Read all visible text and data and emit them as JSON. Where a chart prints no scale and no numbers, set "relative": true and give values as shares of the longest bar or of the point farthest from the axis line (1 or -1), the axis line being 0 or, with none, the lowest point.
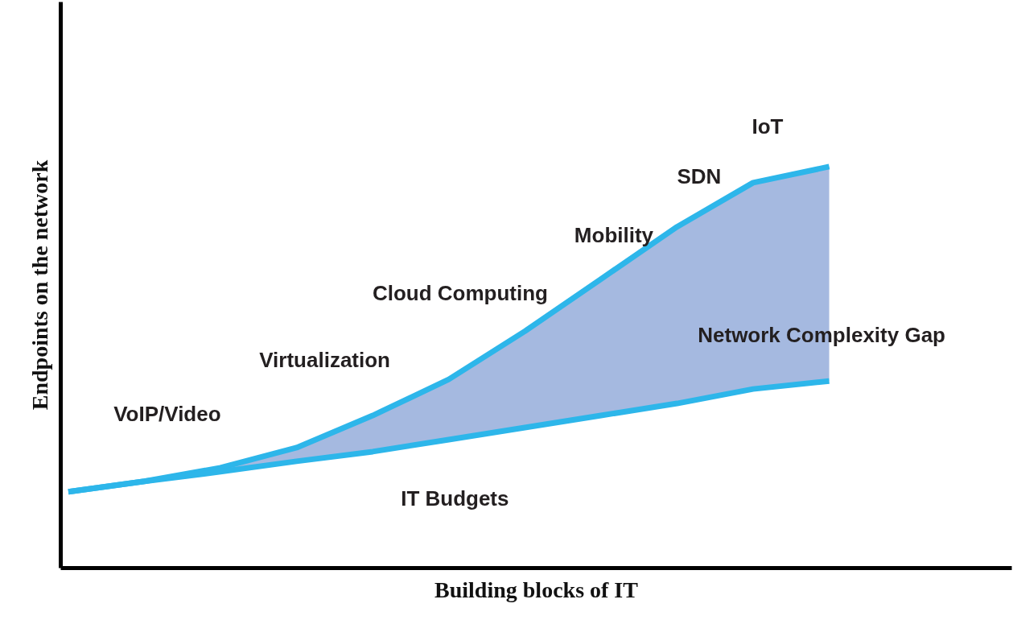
{
  "chart_data": {
    "type": "line",
    "relative": true,
    "xlabel": "Building blocks of IT",
    "ylabel": "Endpoints on the network",
    "categories": [
      null,
      null,
      null,
      null,
      null,
      null,
      null,
      null,
      null,
      null,
      null
    ],
    "series": [
      {
        "color": "#2db6ea",
        "values": [
          0.19,
          0.216,
          0.25,
          0.3,
          0.38,
          0.47,
          0.59,
          0.72,
          0.85,
          0.96,
          1.0
        ],
        "lower": [
          0.19,
          0.216,
          0.24,
          0.266,
          0.29,
          0.32,
          0.35,
          0.38,
          0.41,
          0.446,
          0.466
        ],
        "upper": [
          0.19,
          0.216,
          0.25,
          0.3,
          0.38,
          0.47,
          0.59,
          0.72,
          0.85,
          0.96,
          1.0
        ]
      },
      {
        "color": "#2db6ea",
        "values": [
          0.19,
          0.216,
          0.24,
          0.266,
          0.29,
          0.32,
          0.35,
          0.38,
          0.41,
          0.446,
          0.466
        ]
      }
    ],
    "annotations": [
      "VoIP/Video",
      "Virtualization",
      "Cloud Computing",
      "Mobility",
      "SDN",
      "IoT",
      "Network Complexity Gap",
      "IT Budgets"
    ],
    "grid": false,
    "marker": "none",
    "line_style": "solid"
  }
}
